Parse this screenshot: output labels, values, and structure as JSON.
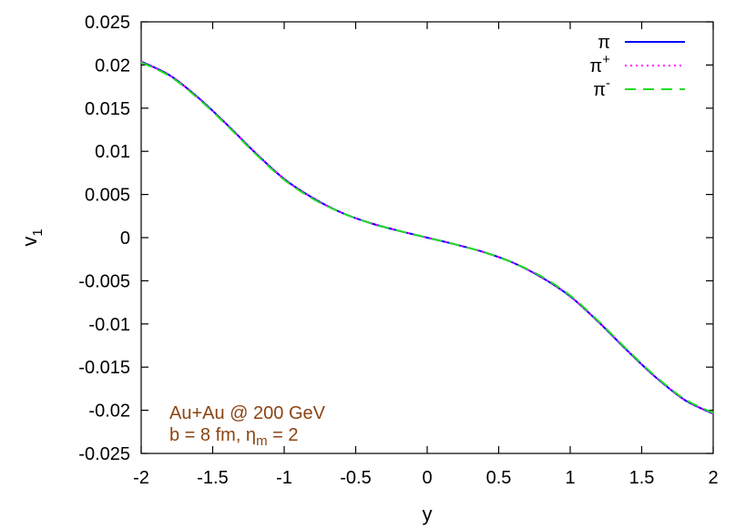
{
  "chart_data": {
    "type": "line",
    "xlabel": "y",
    "ylabel": "v",
    "ylabel_sub": "1",
    "xlim": [
      -2,
      2
    ],
    "ylim": [
      -0.025,
      0.025
    ],
    "x_ticks": [
      "-2",
      "-1.5",
      "-1",
      "-0.5",
      "0",
      "0.5",
      "1",
      "1.5",
      "2"
    ],
    "y_ticks": [
      "0.025",
      "0.02",
      "0.015",
      "0.01",
      "0.005",
      "0",
      "-0.005",
      "-0.01",
      "-0.015",
      "-0.02",
      "-0.025"
    ],
    "legend_placement": "top-right",
    "annotation": {
      "line1": "Au+Au @ 200 GeV",
      "line2_prefix": "b = 8 fm, η",
      "line2_sub": "m",
      "line2_suffix": " = 2"
    },
    "x": [
      -2.0,
      -1.8,
      -1.6,
      -1.4,
      -1.2,
      -1.0,
      -0.8,
      -0.6,
      -0.4,
      -0.2,
      0.0,
      0.2,
      0.4,
      0.6,
      0.8,
      1.0,
      1.2,
      1.4,
      1.6,
      1.8,
      2.0
    ],
    "series": [
      {
        "name": "π",
        "name_sup": "",
        "color": "#0000ff",
        "dash": "solid",
        "values": [
          0.0204,
          0.0188,
          0.0162,
          0.0131,
          0.0098,
          0.0068,
          0.0046,
          0.0029,
          0.0017,
          0.0008,
          0.0,
          -0.0008,
          -0.0017,
          -0.0029,
          -0.0046,
          -0.0068,
          -0.0098,
          -0.0131,
          -0.0162,
          -0.0188,
          -0.0204
        ]
      },
      {
        "name": "π",
        "name_sup": "+",
        "color": "#ff00ff",
        "dash": "dotted",
        "values": [
          0.0204,
          0.0188,
          0.0162,
          0.0131,
          0.0098,
          0.0068,
          0.0046,
          0.0029,
          0.0017,
          0.0008,
          0.0,
          -0.0008,
          -0.0017,
          -0.0029,
          -0.0046,
          -0.0068,
          -0.0098,
          -0.0131,
          -0.0162,
          -0.0188,
          -0.0204
        ]
      },
      {
        "name": "π",
        "name_sup": "-",
        "color": "#22dd22",
        "dash": "dashed",
        "values": [
          0.0203,
          0.0187,
          0.0161,
          0.013,
          0.0097,
          0.0067,
          0.0045,
          0.0029,
          0.0017,
          0.0008,
          0.0,
          -0.0008,
          -0.0017,
          -0.0029,
          -0.0045,
          -0.0067,
          -0.0097,
          -0.013,
          -0.0161,
          -0.0187,
          -0.0203
        ]
      }
    ]
  }
}
